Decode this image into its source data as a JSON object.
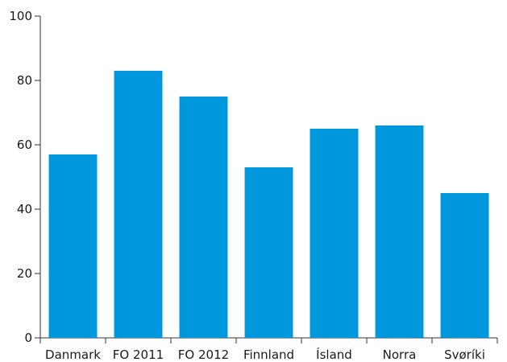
{
  "chart_data": {
    "type": "bar",
    "title": "",
    "xlabel": "",
    "ylabel": "",
    "categories": [
      "Danmark",
      "FO 2011",
      "FO 2012",
      "Finnland",
      "Ísland",
      "Norra",
      "Svøríki"
    ],
    "values": [
      57,
      83,
      75,
      53,
      65,
      66,
      45
    ],
    "ylim": [
      0,
      100
    ],
    "yticks": [
      0,
      20,
      40,
      60,
      80,
      100
    ],
    "grid": false,
    "legend": "none",
    "bar_color": "#0098dc"
  }
}
